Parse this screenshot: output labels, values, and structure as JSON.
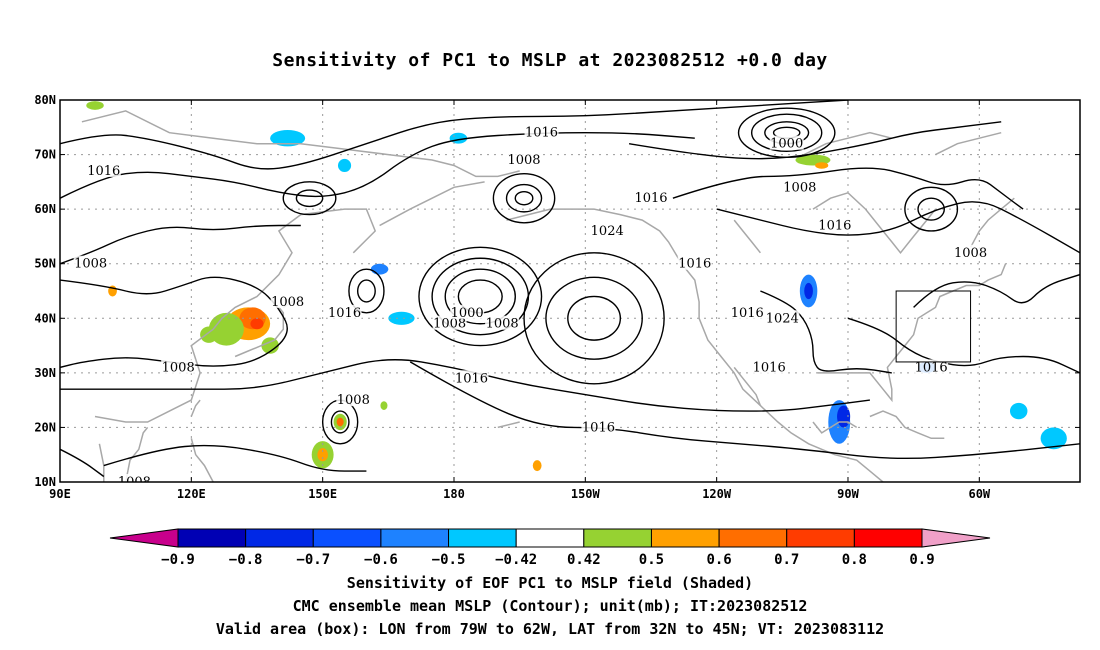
{
  "title": "Sensitivity of PC1 to MSLP at 2023082512 +0.0 day",
  "map": {
    "lon_ticks": [
      {
        "label": "90E",
        "lon": 90
      },
      {
        "label": "120E",
        "lon": 120
      },
      {
        "label": "150E",
        "lon": 150
      },
      {
        "label": "180",
        "lon": 180
      },
      {
        "label": "150W",
        "lon": 210
      },
      {
        "label": "120W",
        "lon": 240
      },
      {
        "label": "90W",
        "lon": 270
      },
      {
        "label": "60W",
        "lon": 300
      }
    ],
    "lat_ticks": [
      {
        "label": "80N",
        "lat": 80
      },
      {
        "label": "70N",
        "lat": 70
      },
      {
        "label": "60N",
        "lat": 60
      },
      {
        "label": "50N",
        "lat": 50
      },
      {
        "label": "40N",
        "lat": 40
      },
      {
        "label": "30N",
        "lat": 30
      },
      {
        "label": "20N",
        "lat": 20
      },
      {
        "label": "10N",
        "lat": 10
      }
    ],
    "extent": {
      "lon_min": 90,
      "lon_max": 323,
      "lat_min": 10,
      "lat_max": 80
    },
    "valid_box": {
      "lon_min": 281,
      "lon_max": 298,
      "lat_min": 32,
      "lat_max": 45
    },
    "contour_labels": [
      {
        "text": "1016",
        "lon": 155,
        "lat": 41
      },
      {
        "text": "1016",
        "lon": 184,
        "lat": 29
      },
      {
        "text": "1016",
        "lon": 200,
        "lat": 74
      },
      {
        "text": "1016",
        "lon": 100,
        "lat": 67
      },
      {
        "text": "1016",
        "lon": 213,
        "lat": 20
      },
      {
        "text": "1016",
        "lon": 225,
        "lat": 62
      },
      {
        "text": "1016",
        "lon": 247,
        "lat": 41
      },
      {
        "text": "1016",
        "lon": 252,
        "lat": 31
      },
      {
        "text": "1016",
        "lon": 289,
        "lat": 31
      },
      {
        "text": "1016",
        "lon": 267,
        "lat": 57
      },
      {
        "text": "1016",
        "lon": 235,
        "lat": 50
      },
      {
        "text": "1024",
        "lon": 215,
        "lat": 56
      },
      {
        "text": "1024",
        "lon": 255,
        "lat": 40
      },
      {
        "text": "1008",
        "lon": 97,
        "lat": 50
      },
      {
        "text": "1008",
        "lon": 142,
        "lat": 43
      },
      {
        "text": "1008",
        "lon": 117,
        "lat": 31
      },
      {
        "text": "1008",
        "lon": 179,
        "lat": 39
      },
      {
        "text": "1008",
        "lon": 191,
        "lat": 39
      },
      {
        "text": "1008",
        "lon": 196,
        "lat": 69
      },
      {
        "text": "1008",
        "lon": 157,
        "lat": 25
      },
      {
        "text": "1008",
        "lon": 107,
        "lat": 10
      },
      {
        "text": "1008",
        "lon": 259,
        "lat": 64
      },
      {
        "text": "1008",
        "lon": 298,
        "lat": 52
      },
      {
        "text": "1000",
        "lon": 256,
        "lat": 72
      },
      {
        "text": "1000",
        "lon": 183,
        "lat": 41
      }
    ],
    "pressure_centers": [
      {
        "type": "low",
        "lon": 186,
        "lat": 44,
        "radii": [
          [
            5,
            3
          ],
          [
            8,
            5
          ],
          [
            11,
            7
          ],
          [
            14,
            9
          ]
        ]
      },
      {
        "type": "low",
        "lon": 196,
        "lat": 62,
        "radii": [
          [
            2,
            1.2
          ],
          [
            4,
            2.5
          ],
          [
            7,
            4.5
          ]
        ]
      },
      {
        "type": "low",
        "lon": 256,
        "lat": 74,
        "radii": [
          [
            3,
            1
          ],
          [
            5,
            2
          ],
          [
            8,
            3.4
          ],
          [
            11,
            4.5
          ]
        ]
      },
      {
        "type": "high",
        "lon": 212,
        "lat": 40,
        "radii": [
          [
            6,
            4
          ],
          [
            11,
            7.5
          ],
          [
            16,
            12
          ]
        ]
      },
      {
        "type": "low",
        "lon": 154,
        "lat": 21,
        "radii": [
          [
            2,
            2
          ],
          [
            4,
            4
          ]
        ]
      },
      {
        "type": "low",
        "lon": 147,
        "lat": 62,
        "radii": [
          [
            3,
            1.5
          ],
          [
            6,
            3
          ]
        ]
      },
      {
        "type": "low",
        "lon": 160,
        "lat": 45,
        "radii": [
          [
            2,
            2
          ],
          [
            4,
            4
          ]
        ]
      },
      {
        "type": "low",
        "lon": 289,
        "lat": 60,
        "radii": [
          [
            3,
            2
          ],
          [
            6,
            4
          ]
        ]
      }
    ],
    "shade_blobs": [
      {
        "lon": 133,
        "lat": 39,
        "rx": 5,
        "ry": 3,
        "class": "0.6"
      },
      {
        "lon": 134,
        "lat": 40,
        "rx": 3,
        "ry": 2,
        "class": "0.7"
      },
      {
        "lon": 135,
        "lat": 39,
        "rx": 1.5,
        "ry": 1,
        "class": "0.8"
      },
      {
        "lon": 128,
        "lat": 38,
        "rx": 4,
        "ry": 3,
        "class": "0.5"
      },
      {
        "lon": 138,
        "lat": 35,
        "rx": 2,
        "ry": 1.5,
        "class": "0.5"
      },
      {
        "lon": 150,
        "lat": 15,
        "rx": 2.5,
        "ry": 2.5,
        "class": "0.5"
      },
      {
        "lon": 150,
        "lat": 15,
        "rx": 1.2,
        "ry": 1.2,
        "class": "0.6"
      },
      {
        "lon": 154,
        "lat": 21,
        "rx": 1.5,
        "ry": 1.5,
        "class": "0.5"
      },
      {
        "lon": 154,
        "lat": 21,
        "rx": 0.8,
        "ry": 0.8,
        "class": "0.7"
      },
      {
        "lon": 268,
        "lat": 21,
        "rx": 2.5,
        "ry": 4,
        "class": "-0.6"
      },
      {
        "lon": 269,
        "lat": 22,
        "rx": 1.5,
        "ry": 2,
        "class": "-0.8"
      },
      {
        "lon": 261,
        "lat": 45,
        "rx": 2,
        "ry": 3,
        "class": "-0.6"
      },
      {
        "lon": 261,
        "lat": 45,
        "rx": 1,
        "ry": 1.5,
        "class": "-0.8"
      },
      {
        "lon": 168,
        "lat": 40,
        "rx": 3,
        "ry": 1.2,
        "class": "-0.5"
      },
      {
        "lon": 142,
        "lat": 73,
        "rx": 4,
        "ry": 1.5,
        "class": "-0.5"
      },
      {
        "lon": 163,
        "lat": 49,
        "rx": 2,
        "ry": 1,
        "class": "-0.6"
      },
      {
        "lon": 155,
        "lat": 68,
        "rx": 1.5,
        "ry": 1.2,
        "class": "-0.5"
      },
      {
        "lon": 262,
        "lat": 69,
        "rx": 4,
        "ry": 1,
        "class": "0.5"
      },
      {
        "lon": 264,
        "lat": 68,
        "rx": 1.5,
        "ry": 0.6,
        "class": "0.6"
      },
      {
        "lon": 98,
        "lat": 79,
        "rx": 2,
        "ry": 0.8,
        "class": "0.5"
      },
      {
        "lon": 102,
        "lat": 45,
        "rx": 1,
        "ry": 1,
        "class": "0.6"
      },
      {
        "lon": 317,
        "lat": 18,
        "rx": 3,
        "ry": 2,
        "class": "-0.5"
      },
      {
        "lon": 309,
        "lat": 23,
        "rx": 2,
        "ry": 1.5,
        "class": "-0.5"
      },
      {
        "lon": 288,
        "lat": 31,
        "rx": 2,
        "ry": 1,
        "class": "-0.6"
      },
      {
        "lon": 181,
        "lat": 73,
        "rx": 2,
        "ry": 1,
        "class": "-0.5"
      },
      {
        "lon": 199,
        "lat": 13,
        "rx": 1,
        "ry": 1,
        "class": "0.6"
      },
      {
        "lon": 124,
        "lat": 37,
        "rx": 2,
        "ry": 1.5,
        "class": "0.5"
      },
      {
        "lon": 164,
        "lat": 24,
        "rx": 0.8,
        "ry": 0.8,
        "class": "0.5"
      }
    ]
  },
  "colorbar": {
    "levels": [
      "-0.9",
      "-0.8",
      "-0.7",
      "-0.6",
      "-0.5",
      "-0.42",
      "0.42",
      "0.5",
      "0.6",
      "0.7",
      "0.8",
      "0.9"
    ],
    "colors": [
      "#c8008c",
      "#0000b4",
      "#0028e6",
      "#0a50ff",
      "#1e82ff",
      "#00c8ff",
      "#ffffff",
      "#96d232",
      "#ffa000",
      "#ff6e00",
      "#ff3c00",
      "#ff0000",
      "#f0a0c8"
    ],
    "shade_colors": {
      "-0.9": "#0000b4",
      "-0.8": "#0028e6",
      "-0.7": "#0a50ff",
      "-0.6": "#1e82ff",
      "-0.5": "#00c8ff",
      "0.5": "#96d232",
      "0.6": "#ffa000",
      "0.7": "#ff6e00",
      "0.8": "#ff3c00",
      "0.9": "#ff0000"
    }
  },
  "captions": {
    "line1": "Sensitivity of EOF PC1 to MSLP field (Shaded)",
    "line2": "CMC ensemble mean MSLP (Contour); unit(mb); IT:2023082512",
    "line3": "Valid area (box): LON from 79W to 62W, LAT from 32N to 45N; VT: 2023083112"
  }
}
